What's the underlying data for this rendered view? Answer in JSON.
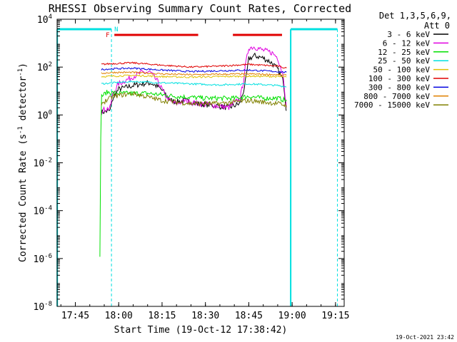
{
  "chart_data": {
    "type": "line",
    "title": "RHESSI Observing Summary Count Rates, Corrected",
    "xlabel": "Start Time (19-Oct-12 17:38:42)",
    "ylabel_main": "Corrected Count Rate (s",
    "ylabel_exp1": "-1",
    "ylabel_mid": " detector",
    "ylabel_exp2": "-1",
    "ylabel_end": ")",
    "footer_date": "19-Oct-2021 23:42",
    "legend_header": [
      "Det 1,3,5,6,9,",
      "Att 0"
    ],
    "xlim": [
      "17:38:42",
      "19:18:00"
    ],
    "ylim": [
      1e-08,
      10000.0
    ],
    "y_scale": "log",
    "x_ticks": [
      "17:45",
      "18:00",
      "18:15",
      "18:30",
      "18:45",
      "19:00",
      "19:15"
    ],
    "y_ticks": [
      {
        "value": 4,
        "base": "10",
        "exp": "4"
      },
      {
        "value": 2,
        "base": "10",
        "exp": "2"
      },
      {
        "value": 0,
        "base": "10",
        "exp": "0"
      },
      {
        "value": -2,
        "base": "10",
        "exp": "-2"
      },
      {
        "value": -4,
        "base": "10",
        "exp": "-4"
      },
      {
        "value": -6,
        "base": "10",
        "exp": "-6"
      },
      {
        "value": -8,
        "base": "10",
        "exp": "-8"
      }
    ],
    "markers": {
      "night_label": "N",
      "flare_label": "F",
      "night_color": "#00e0e0",
      "flare_color": "#e00000",
      "night_intervals": [
        [
          "17:38:42",
          "17:57:30"
        ],
        [
          "18:59:30",
          "19:15:40"
        ]
      ],
      "flare_intervals": [
        [
          "17:58:30",
          "18:27:30"
        ],
        [
          "18:39:30",
          "18:56:30"
        ]
      ],
      "boundaries": [
        {
          "time": "17:38:45",
          "style": "solid"
        },
        {
          "time": "17:57:30",
          "style": "dashed"
        },
        {
          "time": "18:59:30",
          "style": "solid"
        },
        {
          "time": "19:15:40",
          "style": "dashed"
        }
      ]
    },
    "series": [
      {
        "name": "3 - 6 keV",
        "color": "#000000",
        "x": [
          "17:54",
          "17:57",
          "17:58",
          "18:00",
          "18:05",
          "18:08",
          "18:11",
          "18:14",
          "18:16",
          "18:18",
          "18:20",
          "18:23",
          "18:27",
          "18:33",
          "18:38",
          "18:42",
          "18:43",
          "18:44",
          "18:45",
          "18:47",
          "18:50",
          "18:53",
          "18:55",
          "18:57",
          "18:58"
        ],
        "y": [
          1.3,
          1.5,
          5,
          12,
          17,
          20,
          22,
          14,
          8,
          4,
          3.5,
          4,
          3,
          2.5,
          2,
          3,
          8,
          30,
          220,
          300,
          240,
          150,
          80,
          25,
          1.5
        ]
      },
      {
        "name": "6 - 12 keV",
        "color": "#e000e0",
        "x": [
          "17:54",
          "17:57",
          "17:58",
          "18:00",
          "18:05",
          "18:08",
          "18:11",
          "18:14",
          "18:16",
          "18:18",
          "18:20",
          "18:23",
          "18:27",
          "18:33",
          "18:38",
          "18:42",
          "18:43",
          "18:44",
          "18:45",
          "18:47",
          "18:50",
          "18:53",
          "18:55",
          "18:57",
          "18:58"
        ],
        "y": [
          1.5,
          2,
          8,
          20,
          40,
          60,
          60,
          20,
          7,
          3.5,
          3,
          4,
          3,
          2.5,
          2,
          5,
          20,
          150,
          650,
          700,
          500,
          400,
          250,
          40,
          2
        ]
      },
      {
        "name": "12 - 25 keV",
        "color": "#00e000",
        "x": [
          "17:53:30",
          "17:53:50",
          "17:54",
          "17:56",
          "18:00",
          "18:10",
          "18:20",
          "18:30",
          "18:40",
          "18:45",
          "18:50",
          "18:55",
          "18:58"
        ],
        "y": [
          1e-06,
          0.5,
          6,
          9,
          8,
          8,
          6,
          5,
          5,
          6,
          5,
          5,
          4
        ]
      },
      {
        "name": "25 - 50 keV",
        "color": "#00e0e0",
        "x": [
          "17:54",
          "17:58",
          "18:05",
          "18:15",
          "18:25",
          "18:35",
          "18:45",
          "18:55",
          "18:58"
        ],
        "y": [
          20,
          22,
          25,
          22,
          20,
          18,
          20,
          17,
          15
        ]
      },
      {
        "name": "50 - 100 keV",
        "color": "#e0c000",
        "x": [
          "17:54",
          "17:58",
          "18:05",
          "18:15",
          "18:25",
          "18:35",
          "18:45",
          "18:55",
          "18:58"
        ],
        "y": [
          40,
          42,
          45,
          40,
          38,
          40,
          42,
          40,
          38
        ]
      },
      {
        "name": "100 - 300 keV",
        "color": "#e00000",
        "x": [
          "17:54",
          "17:58",
          "18:05",
          "18:15",
          "18:25",
          "18:35",
          "18:45",
          "18:55",
          "18:58"
        ],
        "y": [
          130,
          140,
          150,
          120,
          100,
          110,
          130,
          110,
          90
        ]
      },
      {
        "name": "300 - 800 keV",
        "color": "#0000e0",
        "x": [
          "17:54",
          "17:58",
          "18:05",
          "18:15",
          "18:25",
          "18:35",
          "18:45",
          "18:55",
          "18:58"
        ],
        "y": [
          80,
          85,
          90,
          75,
          65,
          70,
          75,
          65,
          60
        ]
      },
      {
        "name": "800 - 7000 keV",
        "color": "#e08000",
        "x": [
          "17:54",
          "17:58",
          "18:05",
          "18:15",
          "18:25",
          "18:35",
          "18:45",
          "18:55",
          "18:58"
        ],
        "y": [
          55,
          60,
          60,
          52,
          48,
          50,
          52,
          48,
          45
        ]
      },
      {
        "name": "7000 - 15000 keV",
        "color": "#808000",
        "x": [
          "17:54",
          "17:58",
          "18:05",
          "18:15",
          "18:25",
          "18:35",
          "18:45",
          "18:55",
          "18:58"
        ],
        "y": [
          3,
          6,
          8,
          4,
          3,
          3,
          4,
          3,
          2.5
        ]
      }
    ]
  }
}
